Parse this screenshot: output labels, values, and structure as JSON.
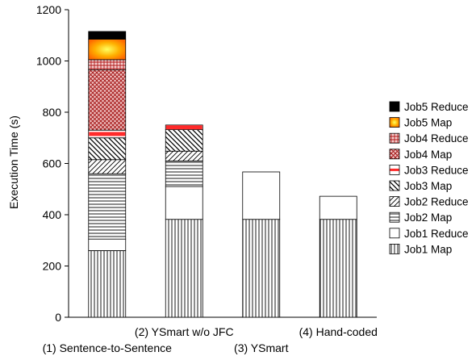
{
  "chart_data": {
    "type": "bar",
    "stacked": true,
    "title": "",
    "xlabel": "",
    "ylabel": "Execution Time (s)",
    "ylim": [
      0,
      1200
    ],
    "yticks": [
      0,
      200,
      400,
      600,
      800,
      1000,
      1200
    ],
    "grid": false,
    "legend_position": "right",
    "categories": [
      "(1) Sentence-to-Sentence",
      "(2) YSmart w/o JFC",
      "(3) YSmart",
      "(4) Hand-coded"
    ],
    "series": [
      {
        "name": "Job1 Map",
        "pattern": "vertical",
        "values": [
          260,
          382,
          382,
          382
        ]
      },
      {
        "name": "Job1 Reduce",
        "pattern": "white",
        "values": [
          45,
          128,
          185,
          90
        ]
      },
      {
        "name": "Job2 Map",
        "pattern": "horizontal",
        "values": [
          255,
          100,
          0,
          0
        ]
      },
      {
        "name": "Job2 Reduce",
        "pattern": "diagonal",
        "values": [
          55,
          38,
          0,
          0
        ]
      },
      {
        "name": "Job3 Map",
        "pattern": "backslash",
        "values": [
          85,
          84,
          0,
          0
        ]
      },
      {
        "name": "Job3 Reduce",
        "pattern": "redline",
        "values": [
          30,
          18,
          0,
          0
        ]
      },
      {
        "name": "Job4 Map",
        "pattern": "crosshatch",
        "values": [
          235,
          0,
          0,
          0
        ]
      },
      {
        "name": "Job4 Reduce",
        "pattern": "grid",
        "values": [
          40,
          0,
          0,
          0
        ]
      },
      {
        "name": "Job5 Map",
        "pattern": "gradient",
        "values": [
          80,
          0,
          0,
          0
        ]
      },
      {
        "name": "Job5 Reduce",
        "pattern": "black",
        "values": [
          30,
          0,
          0,
          0
        ]
      }
    ]
  }
}
